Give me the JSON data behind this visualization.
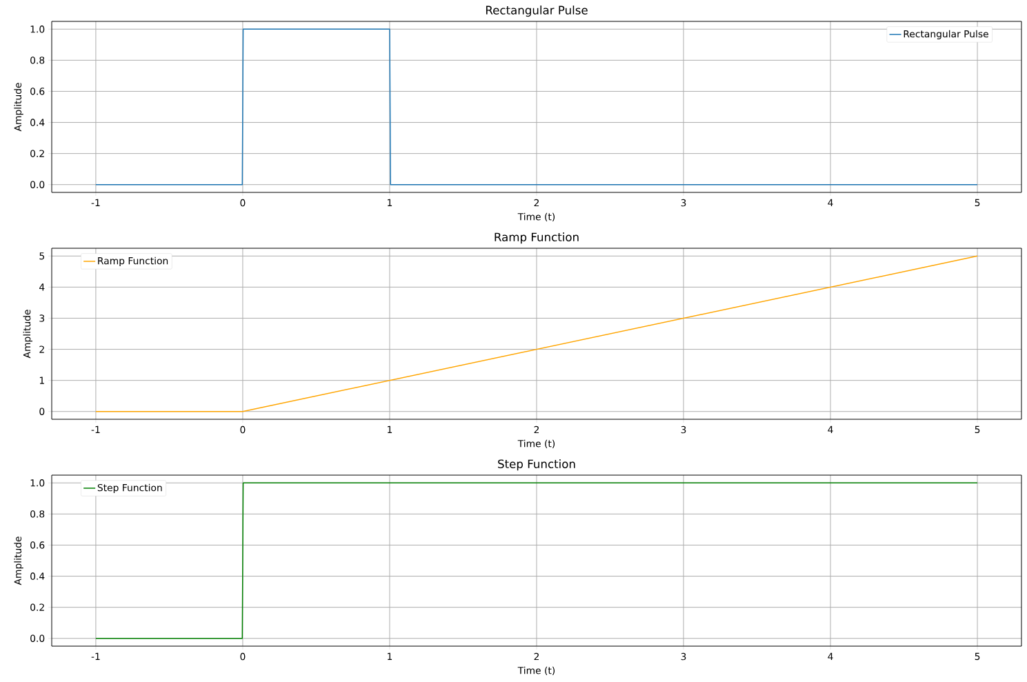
{
  "chart_data": [
    {
      "type": "line",
      "title": "Rectangular Pulse",
      "xlabel": "Time (t)",
      "ylabel": "Amplitude",
      "series": [
        {
          "name": "Rectangular Pulse",
          "color": "#1f77b4",
          "x": [
            -1,
            -0.003,
            0.003,
            1.0,
            1.006,
            5
          ],
          "values": [
            0,
            0,
            1,
            1,
            0,
            0
          ]
        }
      ],
      "xlim": [
        -1.3,
        5.3
      ],
      "ylim": [
        -0.05,
        1.05
      ],
      "xticks": [
        -1,
        0,
        1,
        2,
        3,
        4,
        5
      ],
      "yticks": [
        {
          "value": 0,
          "label": "0.0"
        },
        {
          "value": 0.2,
          "label": "0.2"
        },
        {
          "value": 0.4,
          "label": "0.4"
        },
        {
          "value": 0.6,
          "label": "0.6"
        },
        {
          "value": 0.8,
          "label": "0.8"
        },
        {
          "value": 1,
          "label": "1.0"
        }
      ],
      "grid": true,
      "legend": "top right",
      "marker": "none",
      "line_style": "solid"
    },
    {
      "type": "line",
      "title": "Ramp Function",
      "xlabel": "Time (t)",
      "ylabel": "Amplitude",
      "series": [
        {
          "name": "Ramp Function",
          "color": "#ffa500",
          "x": [
            -1,
            0,
            5
          ],
          "values": [
            0,
            0,
            5
          ]
        }
      ],
      "xlim": [
        -1.3,
        5.3
      ],
      "ylim": [
        -0.25,
        5.25
      ],
      "xticks": [
        -1,
        0,
        1,
        2,
        3,
        4,
        5
      ],
      "yticks": [
        0,
        1,
        2,
        3,
        4,
        5
      ],
      "grid": true,
      "legend": "top left",
      "marker": "none",
      "line_style": "solid"
    },
    {
      "type": "line",
      "title": "Step Function",
      "xlabel": "Time (t)",
      "ylabel": "Amplitude",
      "series": [
        {
          "name": "Step Function",
          "color": "#008000",
          "x": [
            -1,
            -0.003,
            0.003,
            5
          ],
          "values": [
            0,
            0,
            1,
            1
          ]
        }
      ],
      "xlim": [
        -1.3,
        5.3
      ],
      "ylim": [
        -0.05,
        1.05
      ],
      "xticks": [
        -1,
        0,
        1,
        2,
        3,
        4,
        5
      ],
      "yticks": [
        {
          "value": 0,
          "label": "0.0"
        },
        {
          "value": 0.2,
          "label": "0.2"
        },
        {
          "value": 0.4,
          "label": "0.4"
        },
        {
          "value": 0.6,
          "label": "0.6"
        },
        {
          "value": 0.8,
          "label": "0.8"
        },
        {
          "value": 1,
          "label": "1.0"
        }
      ],
      "grid": true,
      "legend": "top left",
      "marker": "none",
      "line_style": "solid"
    }
  ]
}
